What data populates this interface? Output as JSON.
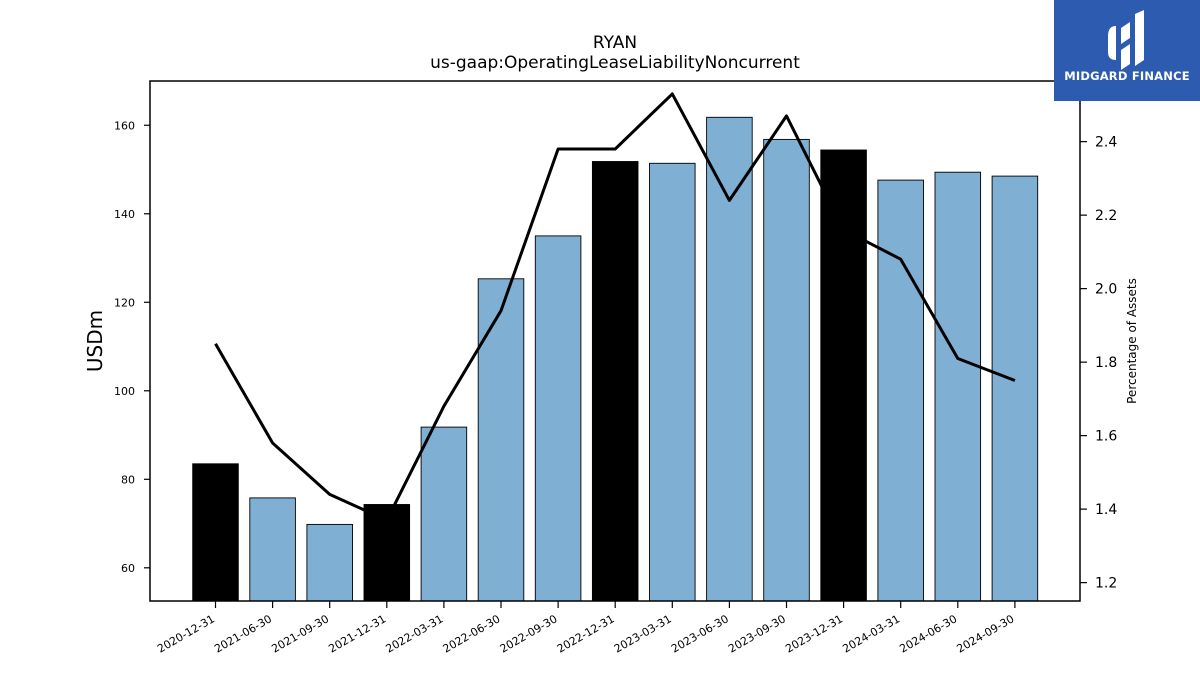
{
  "logo": {
    "text": "MIDGARD FINANCE",
    "background": "#2d5bb0"
  },
  "chart_data": {
    "type": "bar",
    "title": "RYAN",
    "subtitle": "us-gaap:OperatingLeaseLiabilityNoncurrent",
    "ylabel": "USDm",
    "y2label": "Percentage of Assets",
    "categories": [
      "2020-12-31",
      "2021-06-30",
      "2021-09-30",
      "2021-12-31",
      "2022-03-31",
      "2022-06-30",
      "2022-09-30",
      "2022-12-31",
      "2023-03-31",
      "2023-06-30",
      "2023-09-30",
      "2023-12-31",
      "2024-03-31",
      "2024-06-30",
      "2024-09-30"
    ],
    "series": [
      {
        "values": [
          83.5,
          75.8,
          69.8,
          74.3,
          91.8,
          125.3,
          135.0,
          151.8,
          151.4,
          161.8,
          156.8,
          154.4,
          147.6,
          149.4,
          148.5
        ],
        "highlight": [
          true,
          false,
          false,
          true,
          false,
          false,
          false,
          true,
          false,
          false,
          false,
          true,
          false,
          false,
          false
        ],
        "color": "#7fb0d3",
        "highlight_color": "#000000"
      },
      {
        "type": "line",
        "axis": "right",
        "color": "#000000",
        "values": [
          1.85,
          1.58,
          1.44,
          1.37,
          1.68,
          1.94,
          2.38,
          2.38,
          2.53,
          2.24,
          2.47,
          2.16,
          2.08,
          1.81,
          1.75
        ]
      }
    ],
    "ylim": [
      52.5,
      170
    ],
    "y2lim": [
      1.15,
      2.565
    ],
    "yticks": [
      60,
      80,
      100,
      120,
      140,
      160
    ],
    "y2ticks": [
      "1.2",
      "1.4",
      "1.6",
      "1.8",
      "2.0",
      "2.2",
      "2.4"
    ],
    "grid": false
  }
}
